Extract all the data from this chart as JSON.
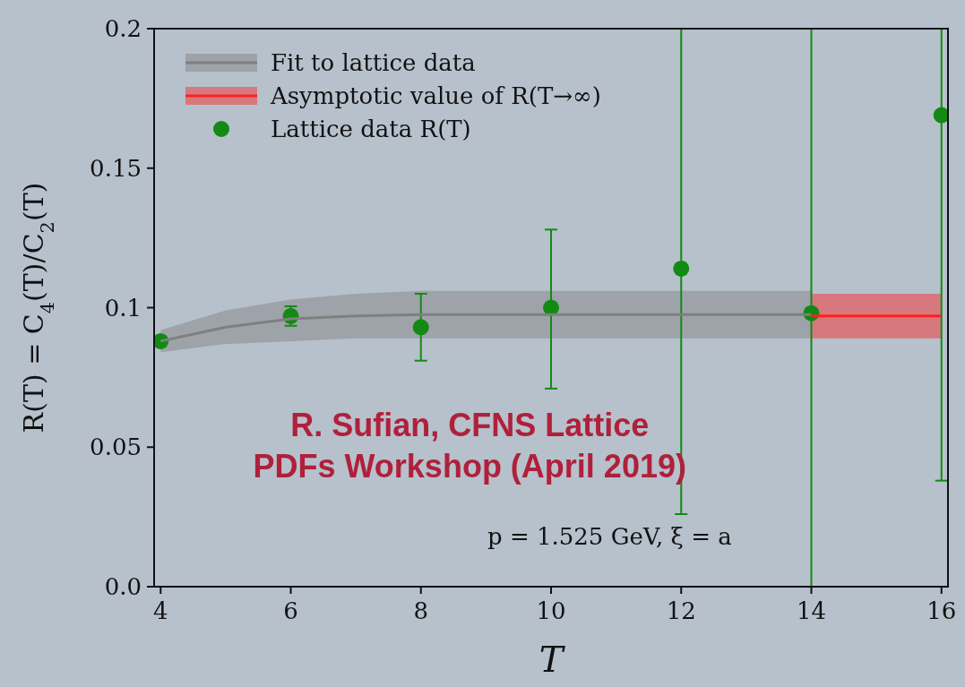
{
  "chart_data": {
    "type": "scatter",
    "xlabel": "T",
    "ylabel": "R(T) = C$_{4}$(T)/C$_{2}$(T)",
    "xlim": [
      3.9,
      16.1
    ],
    "ylim": [
      0,
      0.2
    ],
    "xticks": [
      4,
      6,
      8,
      10,
      12,
      14,
      16
    ],
    "yticks": [
      {
        "value": 0,
        "label": "0.0"
      },
      0.05,
      0.1,
      0.15,
      0.2
    ],
    "grid": false,
    "legend": "top left",
    "series": [
      {
        "type": "line",
        "name": "Fit to lattice data",
        "color": "#7f7f7f",
        "x": [
          4,
          5,
          6,
          7,
          8,
          9,
          10,
          12,
          14
        ],
        "values": [
          0.088,
          0.093,
          0.096,
          0.097,
          0.0975,
          0.0975,
          0.0975,
          0.0975,
          0.0975
        ],
        "lower": [
          0.084,
          0.087,
          0.088,
          0.089,
          0.089,
          0.089,
          0.089,
          0.089,
          0.089
        ],
        "upper": [
          0.092,
          0.099,
          0.103,
          0.105,
          0.106,
          0.106,
          0.106,
          0.106,
          0.106
        ]
      },
      {
        "type": "line",
        "name": "Asymptotic value of R(T→∞)",
        "color": "#ff2020",
        "x": [
          14,
          16
        ],
        "values": [
          0.097,
          0.097
        ],
        "lower": [
          0.089,
          0.089
        ],
        "upper": [
          0.105,
          0.105
        ]
      },
      {
        "name": "Lattice data R(T)",
        "marker": "circle",
        "color": "#138a13",
        "x": [
          4,
          6,
          8,
          10,
          12,
          14,
          16
        ],
        "values": [
          0.088,
          0.097,
          0.093,
          0.1,
          0.114,
          0.098,
          0.169
        ],
        "errors": [
          null,
          0.0035,
          [
            0.081,
            0.105
          ],
          [
            0.071,
            0.128
          ],
          [
            0.026,
            0.2
          ],
          [
            0,
            0.2
          ],
          [
            0.038,
            0.2
          ]
        ]
      }
    ],
    "annotations": [
      "p = 1.525 GeV, ξ = a",
      "R. Sufian, CFNS Lattice PDFs Workshop (April 2019)"
    ]
  }
}
